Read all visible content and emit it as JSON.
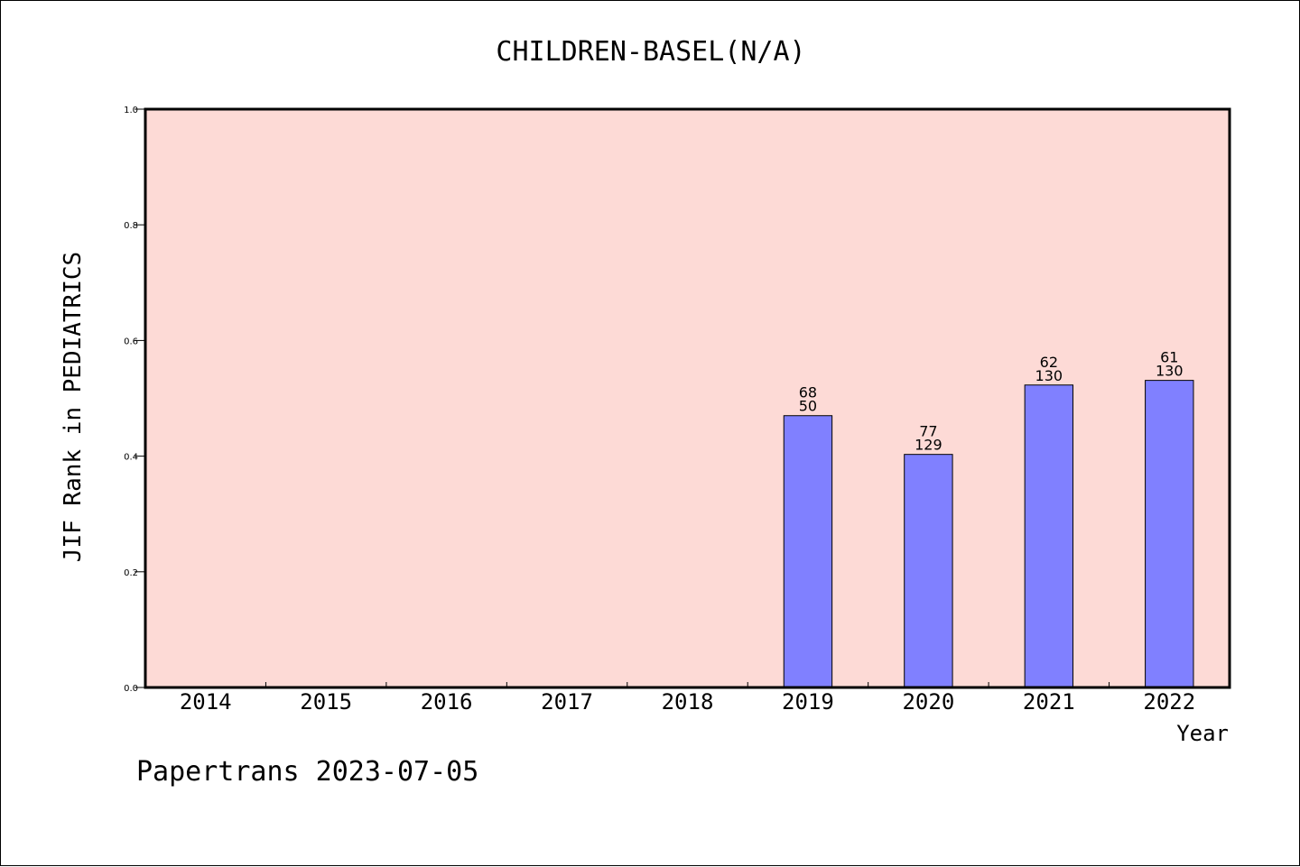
{
  "footer": "Papertrans 2023-07-05",
  "chart_data": {
    "type": "bar",
    "title": "CHILDREN-BASEL(N/A)",
    "xlabel": "Year",
    "ylabel": "JIF Rank in PEDIATRICS",
    "ylim": [
      0,
      1.0
    ],
    "yticks": [
      "0.0",
      "0.2",
      "0.4",
      "0.6",
      "0.8",
      "1.0"
    ],
    "categories": [
      "2014",
      "2015",
      "2016",
      "2017",
      "2018",
      "2019",
      "2020",
      "2021",
      "2022"
    ],
    "values": [
      null,
      null,
      null,
      null,
      null,
      0.47,
      0.403,
      0.523,
      0.531
    ],
    "labels_top": [
      "",
      "",
      "",
      "",
      "",
      "68",
      "77",
      "62",
      "61"
    ],
    "labels_bottom": [
      "",
      "",
      "",
      "",
      "",
      "50",
      "129",
      "130",
      "130"
    ],
    "grid": false,
    "colors": {
      "plot_background": "#fddad6",
      "bar_fill": "#8080ff",
      "bar_edge": "#000000"
    }
  }
}
